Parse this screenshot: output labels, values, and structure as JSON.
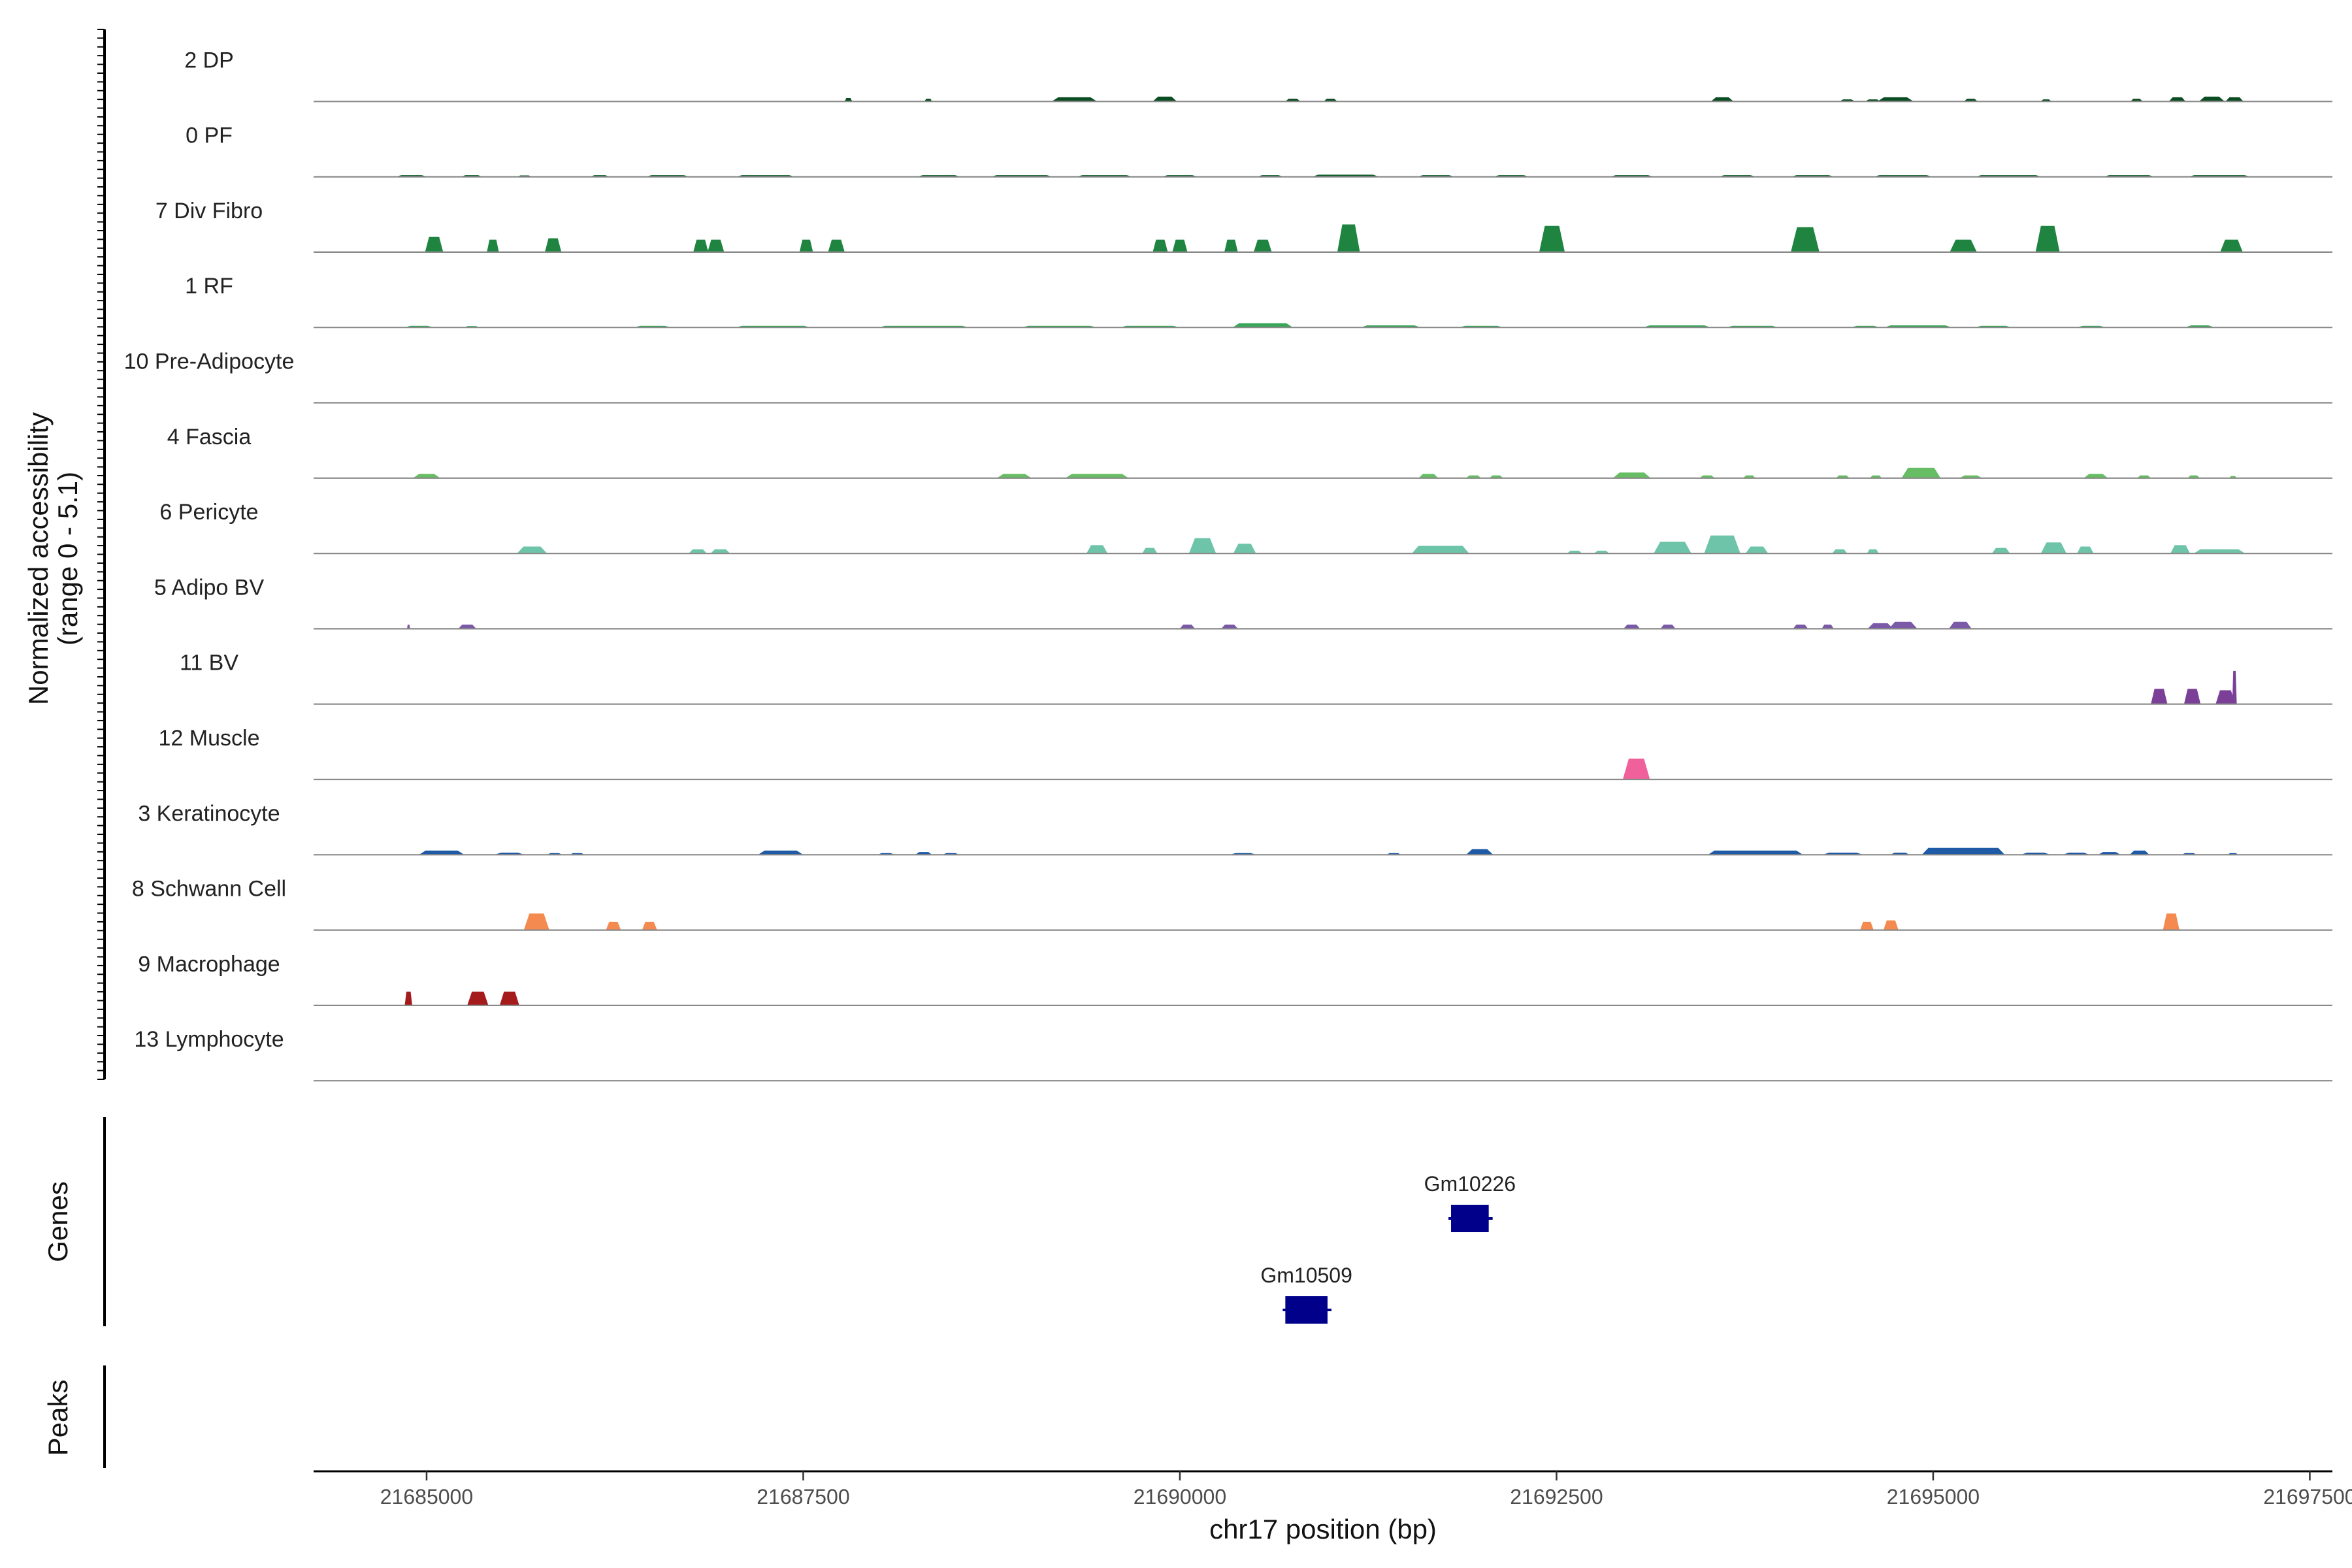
{
  "chart_data": {
    "type": "area",
    "ylabel_lines": [
      "Normalized accessibility",
      "(range 0 - 5.1)"
    ],
    "ymax": 5.1,
    "xlabel": "chr17 position (bp)",
    "x_range": [
      21684250,
      21697650
    ],
    "x_ticks": [
      21685000,
      21687500,
      21690000,
      21692500,
      21695000,
      21697500
    ],
    "x_tick_labels": [
      "21685000",
      "21687500",
      "21690000",
      "21692500",
      "21695000",
      "21697500"
    ],
    "genes_label": "Genes",
    "peaks_label": "Peaks",
    "tracks": [
      {
        "name": "2 DP",
        "color": "#0b4d22",
        "peaks": [
          [
            21687800,
            50,
            0.25
          ],
          [
            21688330,
            50,
            0.2
          ],
          [
            21689300,
            300,
            0.3
          ],
          [
            21689900,
            160,
            0.35
          ],
          [
            21690750,
            100,
            0.2
          ],
          [
            21691000,
            90,
            0.2
          ],
          [
            21693600,
            150,
            0.3
          ],
          [
            21694430,
            100,
            0.15
          ],
          [
            21694600,
            100,
            0.15
          ],
          [
            21694750,
            240,
            0.3
          ],
          [
            21695250,
            90,
            0.2
          ],
          [
            21695750,
            70,
            0.15
          ],
          [
            21696350,
            80,
            0.2
          ],
          [
            21696620,
            110,
            0.3
          ],
          [
            21696850,
            170,
            0.35
          ],
          [
            21697000,
            120,
            0.3
          ]
        ]
      },
      {
        "name": "0 PF",
        "color": "#0e5c2a",
        "peaks": [
          [
            21684900,
            220,
            0.12
          ],
          [
            21685300,
            150,
            0.12
          ],
          [
            21685650,
            100,
            0.1
          ],
          [
            21686150,
            130,
            0.12
          ],
          [
            21686600,
            300,
            0.12
          ],
          [
            21687250,
            400,
            0.12
          ],
          [
            21688400,
            300,
            0.12
          ],
          [
            21688950,
            420,
            0.12
          ],
          [
            21689500,
            380,
            0.12
          ],
          [
            21690000,
            250,
            0.12
          ],
          [
            21690600,
            190,
            0.12
          ],
          [
            21691100,
            450,
            0.15
          ],
          [
            21691700,
            260,
            0.12
          ],
          [
            21692200,
            250,
            0.12
          ],
          [
            21693000,
            300,
            0.12
          ],
          [
            21693700,
            260,
            0.12
          ],
          [
            21694200,
            300,
            0.12
          ],
          [
            21694800,
            400,
            0.12
          ],
          [
            21695500,
            450,
            0.12
          ],
          [
            21696300,
            350,
            0.12
          ],
          [
            21696900,
            420,
            0.12
          ]
        ]
      },
      {
        "name": "7 Div Fibro",
        "color": "#1f8440",
        "peaks": [
          [
            21685050,
            120,
            1.1
          ],
          [
            21685440,
            80,
            0.9
          ],
          [
            21685840,
            110,
            1.0
          ],
          [
            21686820,
            100,
            0.9
          ],
          [
            21686920,
            110,
            0.9
          ],
          [
            21687520,
            90,
            0.9
          ],
          [
            21687720,
            110,
            0.9
          ],
          [
            21689870,
            100,
            0.9
          ],
          [
            21690000,
            100,
            0.9
          ],
          [
            21690340,
            90,
            0.9
          ],
          [
            21690550,
            120,
            0.9
          ],
          [
            21691120,
            150,
            2.0
          ],
          [
            21692470,
            170,
            1.9
          ],
          [
            21694150,
            190,
            1.8
          ],
          [
            21695200,
            180,
            0.9
          ],
          [
            21695760,
            160,
            1.9
          ],
          [
            21696980,
            150,
            0.9
          ]
        ]
      },
      {
        "name": "1 RF",
        "color": "#3aa65a",
        "peaks": [
          [
            21684950,
            200,
            0.12
          ],
          [
            21685300,
            100,
            0.1
          ],
          [
            21686500,
            250,
            0.12
          ],
          [
            21687300,
            500,
            0.12
          ],
          [
            21688300,
            600,
            0.12
          ],
          [
            21689200,
            500,
            0.12
          ],
          [
            21689800,
            400,
            0.12
          ],
          [
            21690550,
            400,
            0.3
          ],
          [
            21691400,
            400,
            0.15
          ],
          [
            21692000,
            300,
            0.12
          ],
          [
            21693300,
            450,
            0.15
          ],
          [
            21693800,
            350,
            0.12
          ],
          [
            21694550,
            200,
            0.12
          ],
          [
            21694900,
            450,
            0.15
          ],
          [
            21695400,
            250,
            0.12
          ],
          [
            21696050,
            200,
            0.12
          ],
          [
            21696770,
            200,
            0.15
          ]
        ]
      },
      {
        "name": "10 Pre-Adipocyte",
        "color": "#4fb066",
        "peaks": []
      },
      {
        "name": "4 Fascia",
        "color": "#66bd63",
        "peaks": [
          [
            21685000,
            180,
            0.3
          ],
          [
            21688900,
            230,
            0.3
          ],
          [
            21689450,
            420,
            0.3
          ],
          [
            21691650,
            130,
            0.3
          ],
          [
            21691950,
            100,
            0.2
          ],
          [
            21692100,
            90,
            0.2
          ],
          [
            21693000,
            250,
            0.4
          ],
          [
            21693500,
            100,
            0.2
          ],
          [
            21693780,
            80,
            0.2
          ],
          [
            21694400,
            90,
            0.2
          ],
          [
            21694620,
            80,
            0.2
          ],
          [
            21694920,
            260,
            0.75
          ],
          [
            21695250,
            150,
            0.2
          ],
          [
            21696080,
            160,
            0.3
          ],
          [
            21696400,
            90,
            0.2
          ],
          [
            21696730,
            80,
            0.2
          ],
          [
            21696990,
            50,
            0.15
          ]
        ]
      },
      {
        "name": "6 Pericyte",
        "color": "#6ec4a8",
        "peaks": [
          [
            21685700,
            200,
            0.5
          ],
          [
            21686800,
            120,
            0.3
          ],
          [
            21686950,
            130,
            0.3
          ],
          [
            21689450,
            140,
            0.6
          ],
          [
            21689800,
            100,
            0.4
          ],
          [
            21690150,
            180,
            1.1
          ],
          [
            21690430,
            150,
            0.7
          ],
          [
            21691730,
            380,
            0.55
          ],
          [
            21692620,
            100,
            0.2
          ],
          [
            21692800,
            100,
            0.2
          ],
          [
            21693270,
            250,
            0.85
          ],
          [
            21693600,
            240,
            1.3
          ],
          [
            21693830,
            150,
            0.5
          ],
          [
            21694380,
            100,
            0.3
          ],
          [
            21694600,
            80,
            0.3
          ],
          [
            21695450,
            120,
            0.4
          ],
          [
            21695800,
            170,
            0.8
          ],
          [
            21696010,
            110,
            0.5
          ],
          [
            21696640,
            130,
            0.6
          ],
          [
            21696900,
            340,
            0.3
          ]
        ]
      },
      {
        "name": "5 Adipo BV",
        "color": "#7a5aa6",
        "peaks": [
          [
            21684880,
            20,
            0.3
          ],
          [
            21685270,
            120,
            0.3
          ],
          [
            21690050,
            100,
            0.3
          ],
          [
            21690330,
            110,
            0.3
          ],
          [
            21693000,
            110,
            0.3
          ],
          [
            21693240,
            100,
            0.3
          ],
          [
            21694120,
            100,
            0.3
          ],
          [
            21694300,
            80,
            0.3
          ],
          [
            21694650,
            170,
            0.4
          ],
          [
            21694800,
            190,
            0.5
          ],
          [
            21695180,
            150,
            0.5
          ]
        ]
      },
      {
        "name": "11 BV",
        "color": "#7b3f98",
        "peaks": [
          [
            21696500,
            110,
            1.1
          ],
          [
            21696720,
            110,
            1.1
          ],
          [
            21696940,
            130,
            1.0
          ],
          [
            21697000,
            30,
            2.4
          ]
        ]
      },
      {
        "name": "12 Muscle",
        "color": "#f0609a",
        "peaks": [
          [
            21693030,
            180,
            1.5
          ]
        ]
      },
      {
        "name": "3 Keratinocyte",
        "color": "#1f5aa6",
        "peaks": [
          [
            21685100,
            300,
            0.3
          ],
          [
            21685550,
            200,
            0.15
          ],
          [
            21685850,
            100,
            0.12
          ],
          [
            21686000,
            100,
            0.12
          ],
          [
            21687350,
            300,
            0.3
          ],
          [
            21688050,
            110,
            0.12
          ],
          [
            21688300,
            110,
            0.2
          ],
          [
            21688480,
            110,
            0.12
          ],
          [
            21690420,
            180,
            0.12
          ],
          [
            21691420,
            100,
            0.12
          ],
          [
            21691990,
            180,
            0.4
          ],
          [
            21693820,
            630,
            0.3
          ],
          [
            21694400,
            270,
            0.15
          ],
          [
            21694780,
            130,
            0.15
          ],
          [
            21695200,
            550,
            0.5
          ],
          [
            21695680,
            200,
            0.15
          ],
          [
            21695950,
            180,
            0.15
          ],
          [
            21696170,
            150,
            0.2
          ],
          [
            21696370,
            130,
            0.3
          ],
          [
            21696700,
            100,
            0.12
          ],
          [
            21696990,
            70,
            0.12
          ]
        ]
      },
      {
        "name": "8 Schwann Cell",
        "color": "#f58a50",
        "peaks": [
          [
            21685730,
            170,
            1.2
          ],
          [
            21686240,
            100,
            0.6
          ],
          [
            21686480,
            100,
            0.6
          ],
          [
            21694560,
            90,
            0.6
          ],
          [
            21694720,
            100,
            0.7
          ],
          [
            21696580,
            110,
            1.2
          ]
        ]
      },
      {
        "name": "9 Macrophage",
        "color": "#a51b1b",
        "peaks": [
          [
            21684880,
            50,
            1.0
          ],
          [
            21685340,
            140,
            1.0
          ],
          [
            21685550,
            130,
            1.0
          ]
        ]
      },
      {
        "name": "13 Lymphocyte",
        "color": "#5a5a5a",
        "peaks": []
      }
    ],
    "genes": [
      {
        "name": "Gm10226",
        "start": 21691800,
        "end": 21692050,
        "row": 0,
        "color": "#00008b"
      },
      {
        "name": "Gm10509",
        "start": 21690700,
        "end": 21690980,
        "row": 1,
        "color": "#00008b"
      }
    ]
  }
}
